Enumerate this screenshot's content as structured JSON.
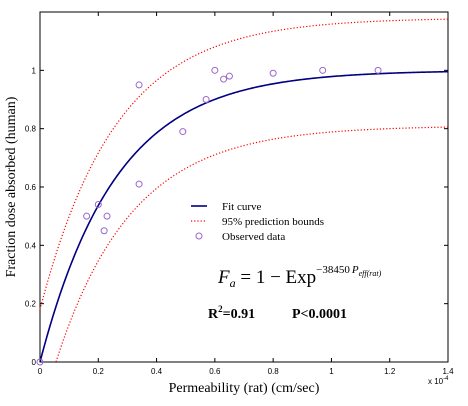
{
  "chart_data": {
    "type": "scatter",
    "xlabel": "Permeability (rat) (cm/sec)",
    "ylabel": "Fraction dose absorbed (human)",
    "x_multiplier_label": "x 10",
    "x_multiplier_exponent": "-4",
    "xlim": [
      0,
      1.4
    ],
    "ylim": [
      0,
      1.2
    ],
    "x_ticks": [
      0,
      0.2,
      0.4,
      0.6,
      0.8,
      1,
      1.2,
      1.4
    ],
    "x_tick_labels": [
      "0",
      "0.2",
      "0.4",
      "0.6",
      "0.8",
      "1",
      "1.2",
      "1.4"
    ],
    "y_ticks": [
      0,
      0.2,
      0.4,
      0.6,
      0.8,
      1
    ],
    "y_tick_labels": [
      "0",
      "0.2",
      "0.4",
      "0.6",
      "0.8",
      "1"
    ],
    "grid": false,
    "legend_position": "center-right",
    "legend": [
      {
        "label": "Fit curve",
        "style": "solid",
        "color": "#000080"
      },
      {
        "label": "95% prediction bounds",
        "style": "dotted",
        "color": "#ff0000"
      },
      {
        "label": "Observed data",
        "style": "circle-marker",
        "color": "#9966cc"
      }
    ],
    "fit_rate": 3.845,
    "bound_upper_offset": 0.18,
    "bound_lower_offset": 0.19,
    "observed": [
      {
        "x": 0.0,
        "y": 0.0
      },
      {
        "x": 0.16,
        "y": 0.5
      },
      {
        "x": 0.2,
        "y": 0.54
      },
      {
        "x": 0.22,
        "y": 0.45
      },
      {
        "x": 0.23,
        "y": 0.5
      },
      {
        "x": 0.34,
        "y": 0.95
      },
      {
        "x": 0.34,
        "y": 0.61
      },
      {
        "x": 0.49,
        "y": 0.79
      },
      {
        "x": 0.57,
        "y": 0.9
      },
      {
        "x": 0.6,
        "y": 1.0
      },
      {
        "x": 0.63,
        "y": 0.97
      },
      {
        "x": 0.65,
        "y": 0.98
      },
      {
        "x": 0.8,
        "y": 0.99
      },
      {
        "x": 0.97,
        "y": 1.0
      },
      {
        "x": 1.16,
        "y": 1.0
      }
    ],
    "colors": {
      "fit": "#000080",
      "bounds": "#ff0000",
      "observed": "#9966cc"
    }
  },
  "equation": {
    "lhs": "F",
    "lhs_sub": "a",
    "rhs": " = 1 − Exp",
    "exp_coef": "−38450",
    "exp_var": "P",
    "exp_var_sub": "eff(rat)"
  },
  "stats": {
    "r2_prefix": "R",
    "r2_sup": "2",
    "r2_value": "=0.91",
    "p_value": "P<0.0001"
  }
}
